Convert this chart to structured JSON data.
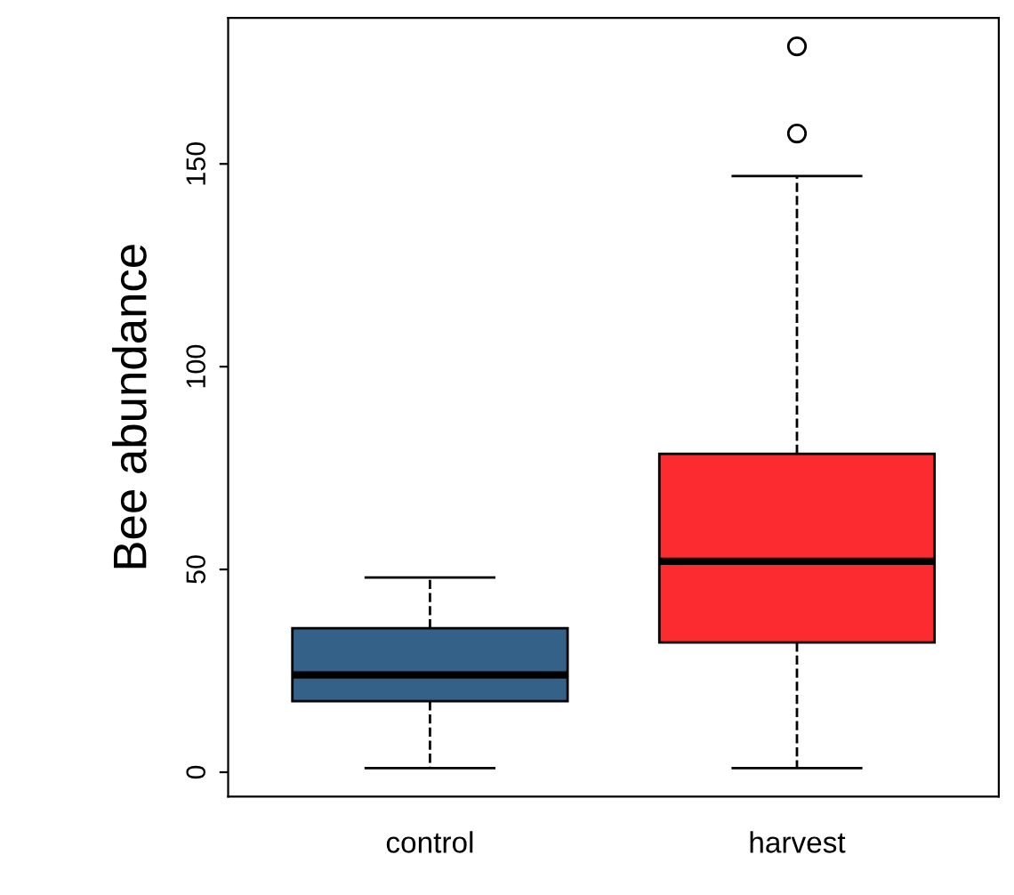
{
  "chart_data": {
    "type": "box",
    "ylabel": "Bee abundance",
    "categories": [
      "control",
      "harvest"
    ],
    "colors": [
      "#336188",
      "#fc2b2f"
    ],
    "boxes": [
      {
        "low": 1,
        "q1": 17.5,
        "median": 24,
        "q3": 35.5,
        "high": 48
      },
      {
        "low": 1,
        "q1": 32,
        "median": 52,
        "q3": 78.5,
        "high": 147,
        "outliers": [
          157.5,
          179
        ]
      }
    ],
    "ylim": [
      -6,
      186
    ],
    "yticks": [
      0,
      50,
      100,
      150
    ],
    "grid": false,
    "legend": false
  }
}
